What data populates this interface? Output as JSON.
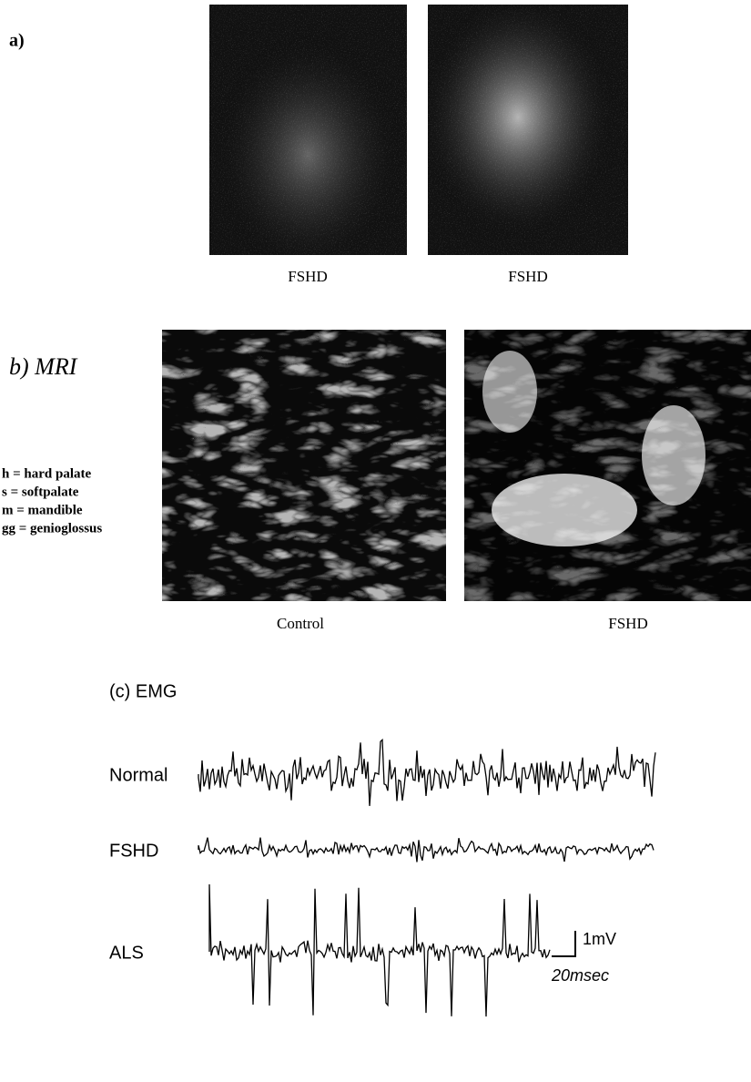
{
  "figure": {
    "panel_a": {
      "label": "a)",
      "captions": [
        "FSHD",
        "FSHD"
      ]
    },
    "panel_b": {
      "label": "b) MRI",
      "legend": [
        "h = hard palate",
        "s = softpalate",
        "m = mandible",
        "gg = genioglossus"
      ],
      "captions": [
        "Control",
        "FSHD"
      ]
    },
    "panel_c": {
      "label": "(c) EMG",
      "traces": [
        "Normal",
        "FSHD",
        "ALS"
      ],
      "scale_voltage": "1mV",
      "scale_time": "20msec"
    }
  }
}
